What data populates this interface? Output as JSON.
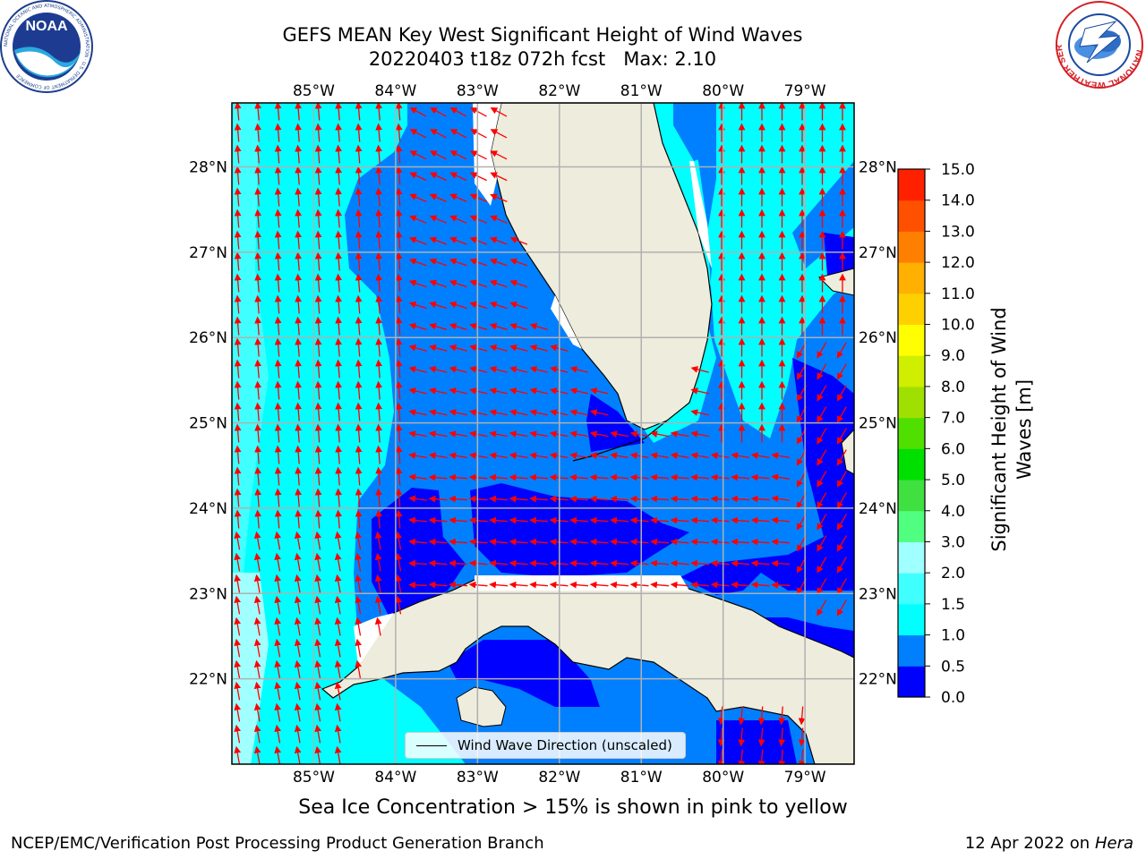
{
  "header": {
    "title_line1": "GEFS MEAN Key West Significant Height of Wind Waves",
    "title_line2": "20220403 t18z 072h fcst   Max: 2.10"
  },
  "logos": {
    "left": "NOAA",
    "left_ring_text": "NATIONAL OCEANIC AND ATMOSPHERIC ADMINISTRATION · U.S. DEPARTMENT OF COMMERCE",
    "right_ring_text": "NATIONAL WEATHER SERVICE"
  },
  "map": {
    "lon_ticks": [
      "85°W",
      "84°W",
      "83°W",
      "82°W",
      "81°W",
      "80°W",
      "79°W"
    ],
    "lat_ticks": [
      "28°N",
      "27°N",
      "26°N",
      "25°N",
      "24°N",
      "23°N",
      "22°N"
    ],
    "lon_range": [
      -86.0,
      -78.4
    ],
    "lat_range": [
      21.0,
      28.75
    ],
    "land_color": "#eeecdc",
    "arrow_color": "#ff0000",
    "legend_label": "Wind Wave Direction (unscaled)"
  },
  "colorbar": {
    "label": "Significant Height of Wind Waves [m]",
    "ticks": [
      "0.0",
      "0.5",
      "1.0",
      "1.5",
      "2.0",
      "3.0",
      "4.0",
      "5.0",
      "6.0",
      "7.0",
      "8.0",
      "9.0",
      "10.0",
      "11.0",
      "12.0",
      "13.0",
      "14.0",
      "15.0"
    ],
    "colors": [
      "#0000ff",
      "#0080ff",
      "#00ffff",
      "#40ffff",
      "#a0ffff",
      "#50ff80",
      "#40e040",
      "#00e000",
      "#50e000",
      "#a0e000",
      "#d0ee00",
      "#ffff00",
      "#ffd000",
      "#ffb000",
      "#ff8000",
      "#ff5000",
      "#ff2000"
    ]
  },
  "subtitle": "Sea Ice Concentration > 15% is shown in pink to yellow",
  "footer": {
    "left": "NCEP/EMC/Verification Post Processing Product Generation Branch",
    "right_date": "12 Apr 2022 on",
    "right_machine": "Hera"
  }
}
